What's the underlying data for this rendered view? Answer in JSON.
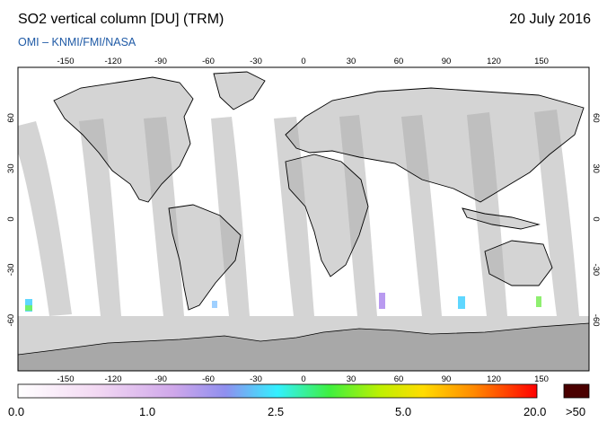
{
  "header": {
    "title": "SO2 vertical column [DU] (TRM)",
    "date": "20 July 2016",
    "subtitle": "OMI  –  KNMI/FMI/NASA"
  },
  "map": {
    "lon_ticks_top": [
      "-150",
      "-120",
      "-90",
      "-60",
      "-30",
      "0",
      "30",
      "60",
      "90",
      "120",
      "150"
    ],
    "lon_ticks_bottom": [
      "-150",
      "-120",
      "-90",
      "-60",
      "-30",
      "0",
      "30",
      "60",
      "90",
      "120",
      "150"
    ],
    "lat_ticks": [
      "60",
      "30",
      "0",
      "-30",
      "-60"
    ],
    "colors": {
      "land_outline": "#000000",
      "swath_light": "#d4d4d4",
      "swath_dark": "#a9a9a9",
      "antarctic": "#a8a8a8"
    }
  },
  "colorbar": {
    "labels": [
      "0.0",
      "1.0",
      "2.5",
      "5.0",
      "20.0"
    ],
    "overflow_label": ">50",
    "overflow_color": "#4a0000"
  }
}
